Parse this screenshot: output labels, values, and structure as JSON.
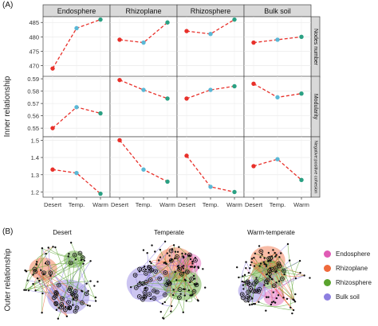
{
  "panel_a_label": "(A)",
  "panel_b_label": "(B)",
  "colors": {
    "line": "#e8302a",
    "point_desert": "#e8302a",
    "point_temp": "#5ab8d6",
    "point_warm": "#2aa083",
    "strip_bg": "#d9d9d9",
    "endosphere": "#e05bb5",
    "rhizoplane": "#ef6a3c",
    "rhizosphere": "#5aa32e",
    "bulk_soil": "#8d7fe0"
  },
  "chart_data": {
    "type": "line",
    "ylabel": "Inner relationship",
    "categories": [
      "Desert",
      "Temp.",
      "Warm"
    ],
    "columns": [
      "Endosphere",
      "Rhizoplane",
      "Rhizosphere",
      "Bulk soil"
    ],
    "rows": [
      {
        "label": "Nodes number",
        "ylim": [
          466,
          487
        ],
        "ticks": [
          470,
          475,
          480,
          485
        ],
        "values": [
          [
            469,
            483,
            486
          ],
          [
            479,
            478,
            485
          ],
          [
            482,
            481,
            486
          ],
          [
            478,
            479,
            480
          ]
        ]
      },
      {
        "label": "Modularity",
        "ylim": [
          0.543,
          0.592
        ],
        "ticks": [
          0.55,
          0.56,
          0.57,
          0.58,
          0.59
        ],
        "values": [
          [
            0.55,
            0.567,
            0.562
          ],
          [
            0.589,
            0.581,
            0.574
          ],
          [
            0.574,
            0.581,
            0.584
          ],
          [
            0.586,
            0.575,
            0.578
          ]
        ]
      },
      {
        "label": "Negative:positive cohesion",
        "ylim": [
          1.17,
          1.52
        ],
        "ticks": [
          1.2,
          1.3,
          1.4,
          1.5
        ],
        "values": [
          [
            1.33,
            1.31,
            1.19
          ],
          [
            1.5,
            1.33,
            1.26
          ],
          [
            1.41,
            1.23,
            1.2
          ],
          [
            1.35,
            1.39,
            1.27
          ]
        ]
      }
    ]
  },
  "outer": {
    "ylabel": "Outer relationship",
    "networks": [
      "Desert",
      "Temperate",
      "Warm-temperate"
    ],
    "legend": [
      {
        "label": "Endosphere",
        "color": "#e05bb5"
      },
      {
        "label": "Rhizoplane",
        "color": "#ef6a3c"
      },
      {
        "label": "Rhizosphere",
        "color": "#5aa32e"
      },
      {
        "label": "Bulk soil",
        "color": "#8d7fe0"
      }
    ]
  }
}
